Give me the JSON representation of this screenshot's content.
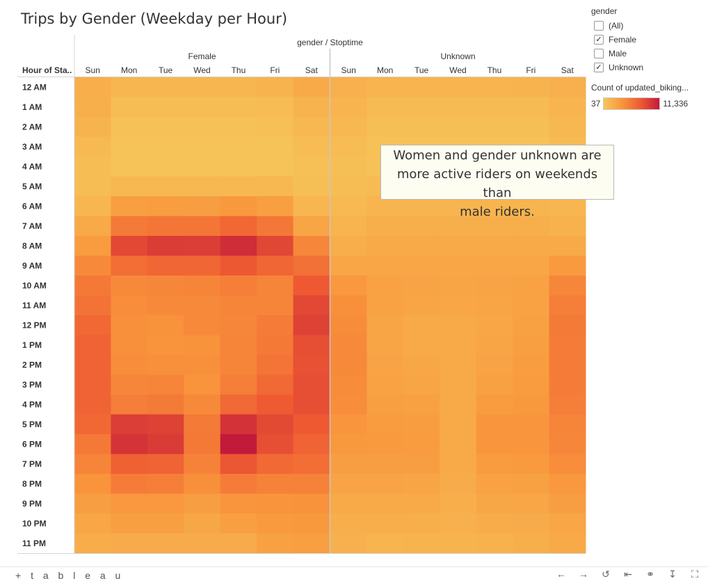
{
  "title": "Trips by Gender (Weekday per Hour)",
  "header": {
    "group_title": "gender / Stoptime",
    "row_header": "Hour of Sta.."
  },
  "filter": {
    "heading": "gender",
    "options": [
      {
        "label": "(All)",
        "checked": false
      },
      {
        "label": "Female",
        "checked": true
      },
      {
        "label": "Male",
        "checked": false
      },
      {
        "label": "Unknown",
        "checked": true
      }
    ]
  },
  "color_legend": {
    "title": "Count of updated_biking...",
    "min_label": "37",
    "max_label": "11,336",
    "min": 37,
    "max": 11336
  },
  "annotation": {
    "lines": [
      "Women and gender unknown are",
      "more active riders on weekends than",
      "male riders."
    ]
  },
  "footer": {
    "logo_text": "+ t a b l e a u",
    "icons": [
      "undo-icon",
      "redo-icon",
      "revert-icon",
      "reset-icon",
      "share-icon",
      "download-icon",
      "fullscreen-icon"
    ]
  },
  "chart_data": {
    "type": "heatmap",
    "groups": [
      "Female",
      "Unknown"
    ],
    "days": [
      "Sun",
      "Mon",
      "Tue",
      "Wed",
      "Thu",
      "Fri",
      "Sat"
    ],
    "hours": [
      "12 AM",
      "1 AM",
      "2 AM",
      "3 AM",
      "4 AM",
      "5 AM",
      "6 AM",
      "7 AM",
      "8 AM",
      "9 AM",
      "10 AM",
      "11 AM",
      "12 PM",
      "1 PM",
      "2 PM",
      "3 PM",
      "4 PM",
      "5 PM",
      "6 PM",
      "7 PM",
      "8 PM",
      "9 PM",
      "10 PM",
      "11 PM"
    ],
    "color_range": [
      37,
      11336
    ],
    "colors": [
      "#f6c65a",
      "#f9953c",
      "#ee5a32",
      "#c21a3b"
    ],
    "values": {
      "Female": [
        [
          1900,
          1300,
          1300,
          1300,
          1300,
          1500,
          2200
        ],
        [
          1800,
          700,
          700,
          700,
          700,
          800,
          1500
        ],
        [
          1500,
          400,
          400,
          400,
          400,
          500,
          1100
        ],
        [
          1000,
          300,
          300,
          300,
          300,
          300,
          800
        ],
        [
          700,
          300,
          300,
          300,
          300,
          300,
          500
        ],
        [
          700,
          1100,
          1100,
          1100,
          1100,
          1200,
          600
        ],
        [
          1300,
          3000,
          3200,
          3100,
          3500,
          3000,
          1300
        ],
        [
          2300,
          5500,
          5800,
          5800,
          6700,
          5700,
          2600
        ],
        [
          3300,
          8600,
          9300,
          9200,
          10200,
          8700,
          4700
        ],
        [
          4500,
          6300,
          6800,
          6800,
          7700,
          6800,
          6100
        ],
        [
          5600,
          4500,
          4700,
          4800,
          5200,
          4900,
          7600
        ],
        [
          6000,
          4300,
          4500,
          4600,
          4900,
          4800,
          8600
        ],
        [
          6700,
          4200,
          4000,
          4500,
          4700,
          5400,
          9000
        ],
        [
          7000,
          4200,
          3900,
          4000,
          4900,
          5600,
          8200
        ],
        [
          7000,
          4300,
          4200,
          4100,
          4900,
          5900,
          8100
        ],
        [
          7000,
          4700,
          4900,
          3900,
          5300,
          6600,
          8200
        ],
        [
          7000,
          5300,
          5500,
          4500,
          6600,
          7500,
          8200
        ],
        [
          6700,
          9200,
          9000,
          5500,
          9900,
          8500,
          7600
        ],
        [
          5600,
          9800,
          9400,
          5600,
          11336,
          8200,
          7000
        ],
        [
          4800,
          7200,
          7000,
          5000,
          7800,
          6600,
          6300
        ],
        [
          3900,
          5400,
          5200,
          4200,
          5400,
          5000,
          5000
        ],
        [
          3100,
          3600,
          3600,
          3100,
          3800,
          3900,
          4000
        ],
        [
          2500,
          3000,
          3000,
          2400,
          3000,
          3400,
          3500
        ],
        [
          2000,
          2100,
          2100,
          2100,
          2100,
          2900,
          3000
        ]
      ],
      "Unknown": [
        [
          1700,
          1400,
          1400,
          1400,
          1400,
          1500,
          1700
        ],
        [
          1400,
          900,
          900,
          900,
          900,
          900,
          1400
        ],
        [
          1100,
          600,
          600,
          600,
          600,
          600,
          1100
        ],
        [
          800,
          400,
          400,
          400,
          400,
          400,
          900
        ],
        [
          600,
          400,
          400,
          400,
          400,
          400,
          700
        ],
        [
          700,
          900,
          900,
          900,
          900,
          900,
          900
        ],
        [
          1000,
          1400,
          1400,
          1400,
          1400,
          1400,
          1300
        ],
        [
          1400,
          1800,
          1800,
          1800,
          1800,
          1800,
          1600
        ],
        [
          1900,
          2300,
          2300,
          2300,
          2300,
          2300,
          2200
        ],
        [
          2500,
          2500,
          2500,
          2500,
          2500,
          2500,
          3400
        ],
        [
          3600,
          2800,
          2700,
          2600,
          2700,
          2800,
          4700
        ],
        [
          4100,
          2800,
          2600,
          2500,
          2600,
          2800,
          5300
        ],
        [
          4400,
          2600,
          2300,
          2300,
          2500,
          2900,
          5500
        ],
        [
          4600,
          2600,
          2300,
          2300,
          2600,
          3000,
          5400
        ],
        [
          4600,
          2700,
          2400,
          2300,
          2700,
          3200,
          5400
        ],
        [
          4400,
          2800,
          2600,
          2300,
          2900,
          3300,
          5400
        ],
        [
          4300,
          3000,
          2900,
          2300,
          3300,
          3500,
          5200
        ],
        [
          3800,
          3300,
          3200,
          2300,
          3700,
          3700,
          4900
        ],
        [
          3500,
          3400,
          3300,
          2300,
          3700,
          3700,
          4700
        ],
        [
          3100,
          3100,
          3100,
          2300,
          3300,
          3400,
          4300
        ],
        [
          2700,
          2700,
          2600,
          2100,
          2800,
          2900,
          3600
        ],
        [
          2300,
          2300,
          2200,
          1900,
          2400,
          2500,
          3100
        ],
        [
          1900,
          1900,
          1800,
          1700,
          2000,
          2100,
          2500
        ],
        [
          1700,
          1400,
          1500,
          1500,
          1600,
          1800,
          2200
        ]
      ]
    }
  }
}
